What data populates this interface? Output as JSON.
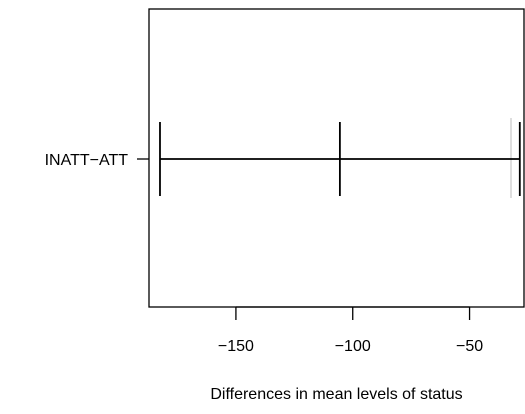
{
  "chart_data": {
    "type": "interval",
    "title": "",
    "xlabel": "Differences in mean levels of status",
    "ylabel": "",
    "xlim": [
      -187.2,
      -26.7
    ],
    "xticks": [
      -150,
      -100,
      -50
    ],
    "xtick_labels": [
      "−150",
      "−100",
      "−50"
    ],
    "zero_reference_line": true,
    "grid": false,
    "intervals": [
      {
        "label": "INATT−ATT",
        "lower": -182.5,
        "estimate": -105.5,
        "upper": -28.5
      }
    ],
    "colors": {
      "line": "#000000",
      "reference_line": "#bebebe"
    }
  }
}
